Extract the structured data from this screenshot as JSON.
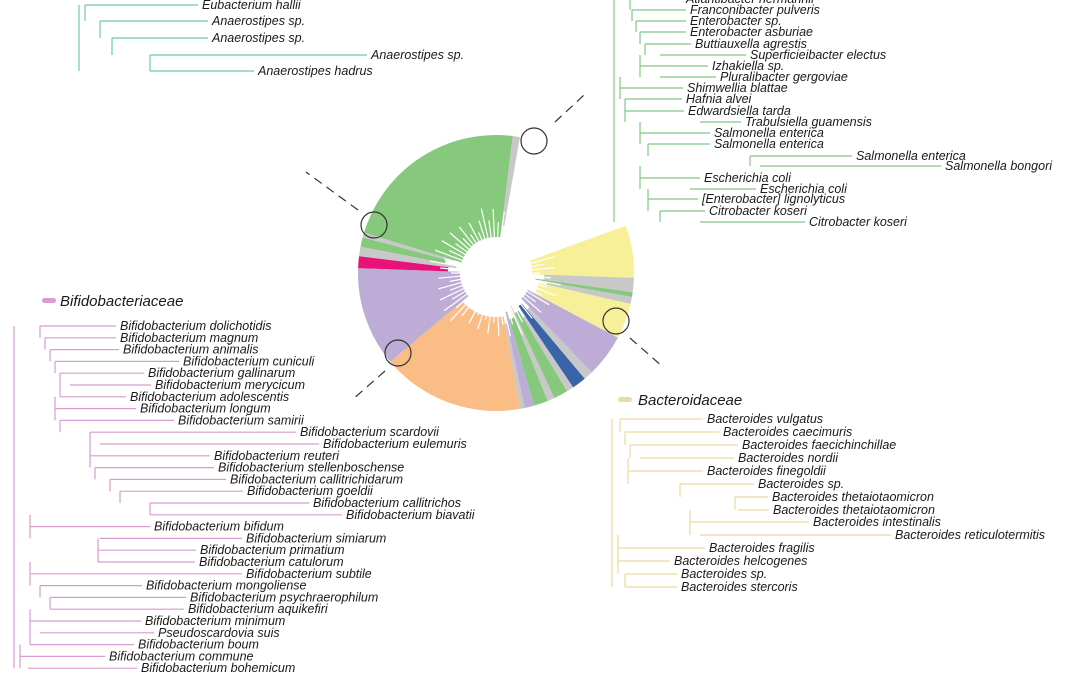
{
  "colors": {
    "enterobacteriaceae": "#82c782",
    "bifidobacteriaceae": "#d79cd0",
    "bacteroidaceae": "#ecd9a0",
    "lachnospiraceae": "#6fc8a8",
    "wheel_green": "#86c97d",
    "wheel_yellow": "#f7f098",
    "wheel_lavender": "#bcacd6",
    "wheel_orange": "#fbbd86",
    "wheel_blue": "#3a64a8",
    "wheel_magenta": "#e8127a",
    "wheel_gray": "#c8c8c8"
  },
  "clades": {
    "lachnospiraceae": {
      "title": "",
      "leaves": [
        "Eubacterium hallii",
        "Anaerostipes sp.",
        "Anaerostipes sp.",
        "Anaerostipes sp.",
        "Anaerostipes hadrus"
      ]
    },
    "enterobacteriaceae": {
      "title": "",
      "leaves": [
        "Atlantibacter hermannii",
        "Franconibacter pulveris",
        "Enterobacter sp.",
        "Enterobacter asburiae",
        "Buttiauxella agrestis",
        "Superficieibacter electus",
        "Izhakiella sp.",
        "Pluralibacter gergoviae",
        "Shimwellia blattae",
        "Hafnia alvei",
        "Edwardsiella tarda",
        "Trabulsiella guamensis",
        "Salmonella enterica",
        "Salmonella enterica",
        "Salmonella enterica",
        "Salmonella bongori",
        "Escherichia coli",
        "Escherichia coli",
        "[Enterobacter] lignolyticus",
        "Citrobacter koseri",
        "Citrobacter koseri"
      ]
    },
    "bifidobacteriaceae": {
      "title": "Bifidobacteriaceae",
      "leaves": [
        "Bifidobacterium dolichotidis",
        "Bifidobacterium magnum",
        "Bifidobacterium animalis",
        "Bifidobacterium cuniculi",
        "Bifidobacterium gallinarum",
        "Bifidobacterium merycicum",
        "Bifidobacterium adolescentis",
        "Bifidobacterium longum",
        "Bifidobacterium samirii",
        "Bifidobacterium scardovii",
        "Bifidobacterium eulemuris",
        "Bifidobacterium reuteri",
        "Bifidobacterium stellenboschense",
        "Bifidobacterium callitrichidarum",
        "Bifidobacterium goeldii",
        "Bifidobacterium callitrichos",
        "Bifidobacterium biavatii",
        "Bifidobacterium bifidum",
        "Bifidobacterium simiarum",
        "Bifidobacterium primatium",
        "Bifidobacterium catulorum",
        "Bifidobacterium subtile",
        "Bifidobacterium mongoliense",
        "Bifidobacterium psychraerophilum",
        "Bifidobacterium aquikefiri",
        "Bifidobacterium minimum",
        "Pseudoscardovia suis",
        "Bifidobacterium boum",
        "Bifidobacterium commune",
        "Bifidobacterium bohemicum"
      ]
    },
    "bacteroidaceae": {
      "title": "Bacteroidaceae",
      "leaves": [
        "Bacteroides vulgatus",
        "Bacteroides caecimuris",
        "Bacteroides faecichinchillae",
        "Bacteroides nordii",
        "Bacteroides finegoldii",
        "Bacteroides sp.",
        "Bacteroides thetaiotaomicron",
        "Bacteroides thetaiotaomicron",
        "Bacteroides intestinalis",
        "Bacteroides reticulotermitis",
        "Bacteroides fragilis",
        "Bacteroides helcogenes",
        "Bacteroides sp.",
        "Bacteroides stercoris"
      ]
    }
  },
  "wheel": {
    "sectors": [
      {
        "color": "wheel_yellow",
        "deg": 22
      },
      {
        "color": "wheel_gray",
        "deg": 6
      },
      {
        "color": "wheel_green",
        "deg": 2
      },
      {
        "color": "wheel_gray",
        "deg": 3
      },
      {
        "color": "wheel_yellow",
        "deg": 15
      },
      {
        "color": "wheel_lavender",
        "deg": 18
      },
      {
        "color": "wheel_gray",
        "deg": 4
      },
      {
        "color": "wheel_blue",
        "deg": 6
      },
      {
        "color": "wheel_gray",
        "deg": 3
      },
      {
        "color": "wheel_green",
        "deg": 6
      },
      {
        "color": "wheel_gray",
        "deg": 3
      },
      {
        "color": "wheel_green",
        "deg": 6
      },
      {
        "color": "wheel_lavender",
        "deg": 4
      },
      {
        "color": "wheel_gray",
        "deg": 2
      },
      {
        "color": "wheel_orange",
        "deg": 60
      },
      {
        "color": "wheel_lavender",
        "deg": 42
      },
      {
        "color": "wheel_magenta",
        "deg": 5
      },
      {
        "color": "wheel_gray",
        "deg": 4
      },
      {
        "color": "wheel_green",
        "deg": 4
      },
      {
        "color": "wheel_gray",
        "deg": 2
      },
      {
        "color": "wheel_green",
        "deg": 80
      },
      {
        "color": "wheel_gray",
        "deg": 3
      }
    ]
  }
}
